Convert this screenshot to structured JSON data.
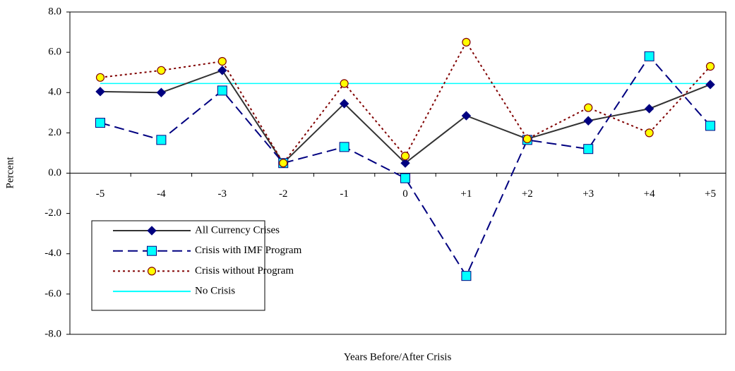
{
  "chart_data": {
    "type": "line",
    "x_label": "Years Before/After Crisis",
    "y_label": "Percent",
    "categories": [
      "-5",
      "-4",
      "-3",
      "-2",
      "-1",
      "0",
      "+1",
      "+2",
      "+3",
      "+4",
      "+5"
    ],
    "ylim": [
      -8,
      8
    ],
    "yticks": [
      {
        "value": -8,
        "label": "-8.0"
      },
      {
        "value": -6,
        "label": "-6.0"
      },
      {
        "value": -4,
        "label": "-4.0"
      },
      {
        "value": -2,
        "label": "-2.0"
      },
      {
        "value": 0,
        "label": "0.0"
      },
      {
        "value": 2,
        "label": "2.0"
      },
      {
        "value": 4,
        "label": "4.0"
      },
      {
        "value": 6,
        "label": "6.0"
      },
      {
        "value": 8,
        "label": "8.0"
      }
    ],
    "grid": false,
    "legend": "lower left",
    "series": [
      {
        "name": "All Currency Crises",
        "color": "#333333",
        "marker": "diamond",
        "marker_color": "#000080",
        "dash": "solid",
        "values": [
          4.05,
          4.0,
          5.1,
          0.5,
          3.45,
          0.5,
          2.85,
          1.7,
          2.6,
          3.2,
          4.4
        ]
      },
      {
        "name": "Crisis with IMF Program",
        "color": "#000080",
        "marker": "square",
        "marker_color": "#00ffff",
        "dash": "dashed",
        "values": [
          2.5,
          1.65,
          4.1,
          0.5,
          1.3,
          -0.25,
          -5.1,
          1.65,
          1.2,
          5.8,
          2.35
        ]
      },
      {
        "name": "Crisis without Program",
        "color": "#800000",
        "marker": "circle",
        "marker_color": "#ffff00",
        "dash": "dotted",
        "values": [
          4.75,
          5.1,
          5.55,
          0.5,
          4.45,
          0.85,
          6.5,
          1.7,
          3.25,
          2.0,
          5.3
        ]
      },
      {
        "name": "No Crisis",
        "color": "#00ffff",
        "marker": "none",
        "dash": "solid",
        "values": [
          4.45,
          4.45,
          4.45,
          4.45,
          4.45,
          4.45,
          4.45,
          4.45,
          4.45,
          4.45,
          4.45
        ]
      }
    ]
  }
}
